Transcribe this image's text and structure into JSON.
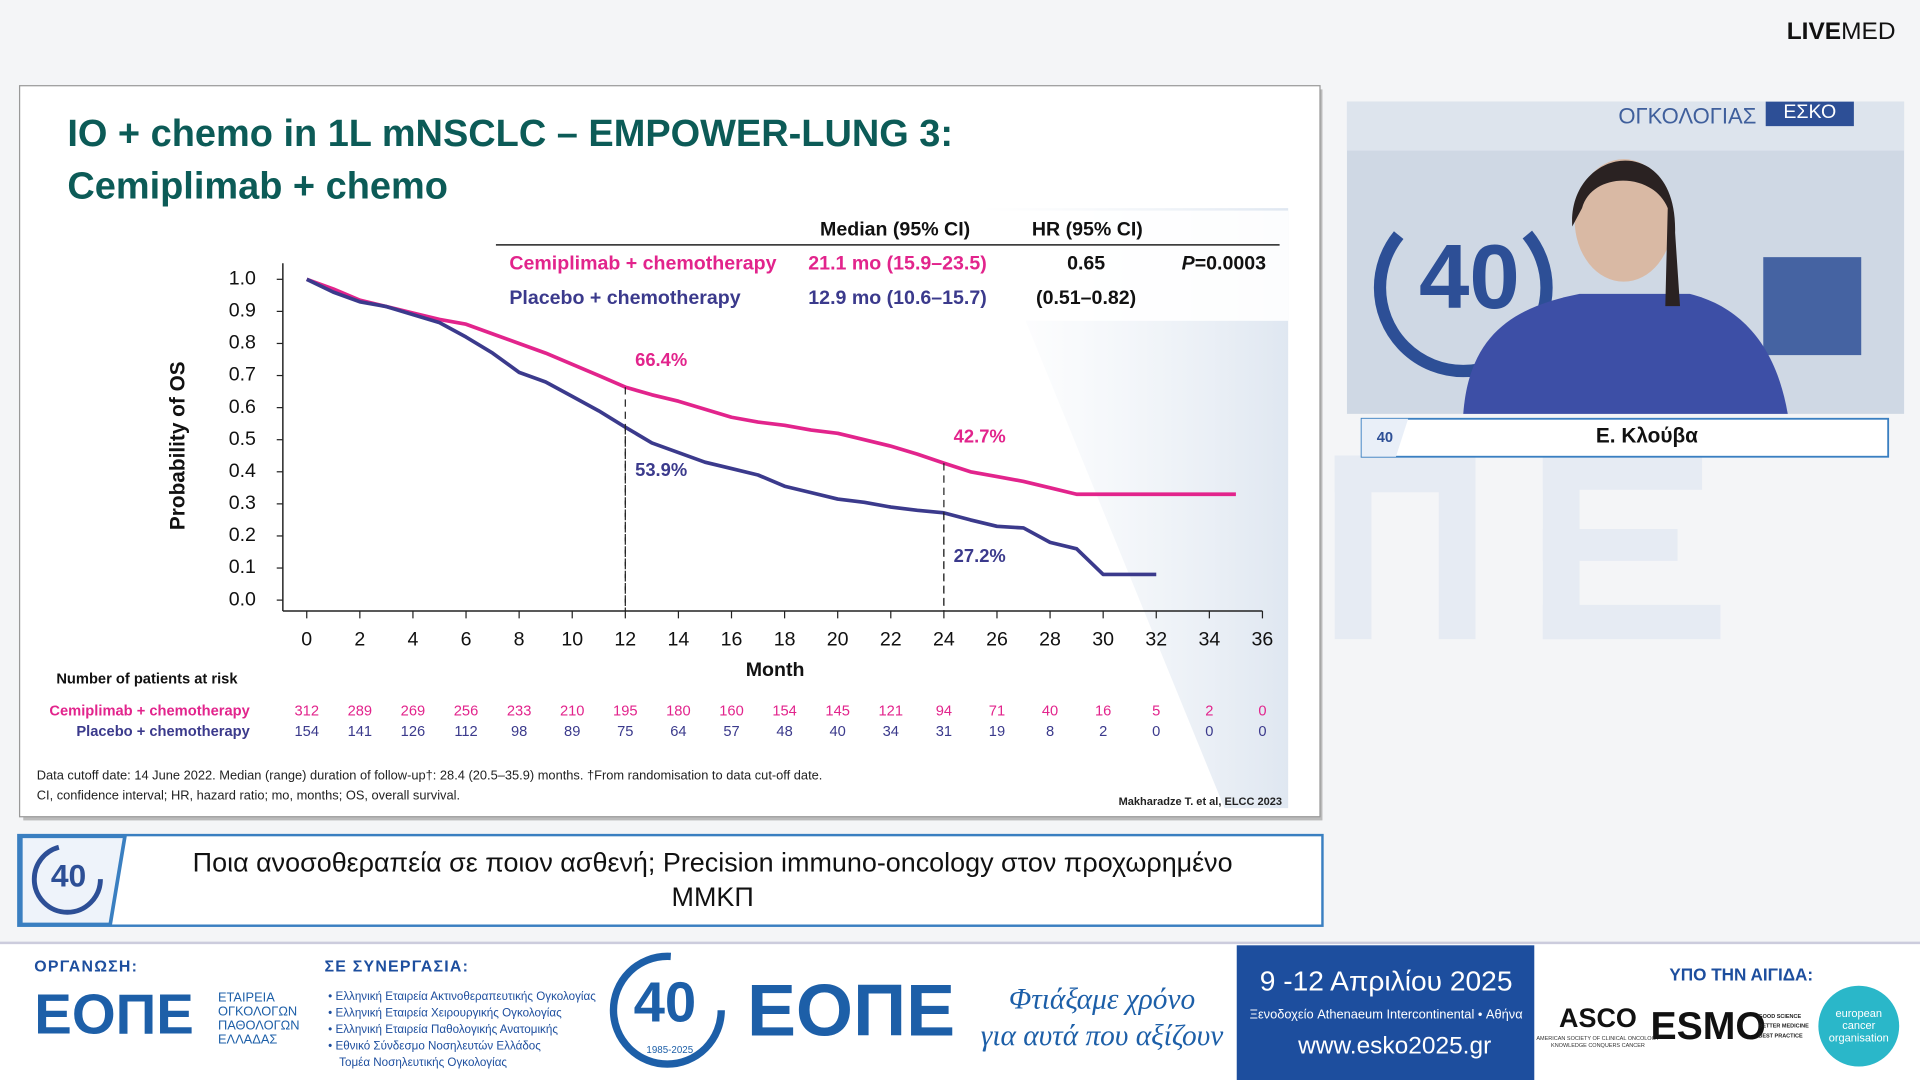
{
  "header": {
    "brand_bold": "LIVE",
    "brand_light": "MED"
  },
  "slide": {
    "title_line1": "IO + chemo in 1L mNSCLC – EMPOWER-LUNG 3:",
    "title_line2": "Cemiplimab + chemo",
    "footnote_line1": "Data cutoff date: 14 June 2022. Median (range) duration of follow-up†: 28.4 (20.5–35.9) months. †From randomisation to data cut-off date.",
    "footnote_line2": "CI, confidence interval; HR, hazard ratio; mo, months; OS, overall survival.",
    "reference": "Makharadze T. et al, ELCC 2023"
  },
  "chart_data": {
    "type": "line",
    "x_label": "Month",
    "y_label": "Probability of OS",
    "x": [
      0,
      1,
      2,
      3,
      4,
      5,
      6,
      7,
      8,
      9,
      10,
      11,
      12,
      13,
      14,
      15,
      16,
      17,
      18,
      19,
      20,
      21,
      22,
      23,
      24,
      25,
      26,
      27,
      28,
      29,
      30,
      31,
      32,
      33,
      34,
      35
    ],
    "series": [
      {
        "name": "Cemiplimab + chemotherapy",
        "color": "#e2248c",
        "values": [
          1.0,
          0.97,
          0.935,
          0.915,
          0.895,
          0.875,
          0.86,
          0.83,
          0.8,
          0.77,
          0.735,
          0.7,
          0.664,
          0.64,
          0.62,
          0.595,
          0.57,
          0.555,
          0.545,
          0.53,
          0.52,
          0.5,
          0.48,
          0.455,
          0.427,
          0.4,
          0.385,
          0.37,
          0.35,
          0.33,
          0.33,
          0.33,
          0.33,
          0.33,
          0.33,
          0.33
        ]
      },
      {
        "name": "Placebo + chemotherapy",
        "color": "#3b3a8c",
        "values": [
          1.0,
          0.96,
          0.93,
          0.915,
          0.89,
          0.865,
          0.82,
          0.77,
          0.71,
          0.68,
          0.635,
          0.59,
          0.539,
          0.49,
          0.46,
          0.43,
          0.41,
          0.39,
          0.355,
          0.335,
          0.315,
          0.305,
          0.29,
          0.28,
          0.272,
          0.25,
          0.23,
          0.225,
          0.18,
          0.16,
          0.08,
          0.08,
          0.08,
          null,
          null,
          null
        ]
      }
    ],
    "xlim": [
      -0.9,
      36
    ],
    "ylim": [
      -0.034,
      1.05
    ],
    "xticks": [
      0,
      2,
      4,
      6,
      8,
      10,
      12,
      14,
      16,
      18,
      20,
      22,
      24,
      26,
      28,
      30,
      32,
      34,
      36
    ],
    "yticks": [
      {
        "value": 0,
        "label": "0.0"
      },
      0.1,
      0.2,
      0.3,
      0.4,
      0.5,
      0.6,
      0.7,
      0.8,
      0.9,
      {
        "value": 1,
        "label": "1.0"
      }
    ],
    "annotations": [
      {
        "x": 12,
        "value": 0.664,
        "label": "66.4%"
      },
      {
        "x": 12,
        "value": 0.539,
        "label": "53.9%"
      },
      {
        "x": 24,
        "value": 0.427,
        "label": "42.7%"
      },
      {
        "x": 24,
        "value": 0.272,
        "label": "27.2%"
      }
    ],
    "stats_table": {
      "headers": [
        "Median (95% CI)",
        "HR (95% CI)"
      ],
      "rows": [
        {
          "median": "21.1 mo (15.9–23.5)",
          "hr": "0.65",
          "p_label": "P",
          "p_value": "=0.0003"
        },
        {
          "median": "12.9 mo (10.6–15.7)",
          "hr": "(0.51–0.82)"
        }
      ]
    },
    "risk_table": {
      "title": "Number of patients at risk",
      "rows": [
        [
          312,
          289,
          269,
          256,
          233,
          210,
          195,
          180,
          160,
          154,
          145,
          121,
          94,
          71,
          40,
          16,
          5,
          2,
          0
        ],
        [
          154,
          141,
          126,
          112,
          98,
          89,
          75,
          64,
          57,
          48,
          40,
          34,
          31,
          19,
          8,
          2,
          0,
          0,
          0
        ]
      ]
    }
  },
  "video": {
    "banner_word": "ΟΓΚΟΛΟΓΙΑΣ",
    "banner_tag": "ΕΣΚΟ",
    "logo_number": "40"
  },
  "speaker": {
    "name": "Ε. Κλούβα",
    "logo_number": "40"
  },
  "session": {
    "logo_number": "40",
    "title_line1": "Ποια ανοσοθεραπεία σε ποιον ασθενή; Precision immuno-oncology στον προχωρημένο",
    "title_line2": "ΜΜΚΠ"
  },
  "footer": {
    "organizer_label": "ΟΡΓΑΝΩΣΗ:",
    "organizer_logo": "ΕΟΠΕ",
    "organizer_lines": [
      "ΕΤΑΙΡΕΙΑ",
      "ΟΓΚΟΛΟΓΩΝ",
      "ΠΑΘΟΛΟΓΩΝ",
      "ΕΛΛΑΔΑΣ"
    ],
    "partners_label": "ΣΕ ΣΥΝΕΡΓΑΣΙΑ:",
    "partners": [
      "• Ελληνική Εταιρεία Ακτινοθεραπευτικής Ογκολογίας",
      "• Ελληνική Εταιρεία Χειρουργικής Ογκολογίας",
      "• Ελληνική Εταιρεία Παθολογικής Ανατομικής",
      "• Εθνικό Σύνδεσμο Νοσηλευτών Ελλάδος",
      "Τομέα Νοσηλευτικής Ογκολογίας"
    ],
    "logo_number": "40",
    "logo_years": "1985-2025",
    "logo_word": "ΕΟΠΕ",
    "tagline_line1": "Φτιάξαμε χρόνο",
    "tagline_line2": "για αυτά που αξίζουν",
    "dates": "9 -12 Απριλίου 2025",
    "venue": "Ξενοδοχείο Athenaeum Intercontinental • Αθήνα",
    "website": "www.esko2025.gr",
    "auspices_label": "ΥΠΟ ΤΗΝ ΑΙΓΙΔΑ:",
    "asco": "ASCO",
    "asco_line1": "AMERICAN SOCIETY OF CLINICAL ONCOLOGY",
    "asco_line2": "KNOWLEDGE CONQUERS CANCER",
    "esmo": "ESMO",
    "esmo_lines": [
      "GOOD SCIENCE",
      "BETTER MEDICINE",
      "BEST PRACTICE"
    ],
    "eco_lines": [
      "european",
      "cancer",
      "organisation"
    ]
  }
}
